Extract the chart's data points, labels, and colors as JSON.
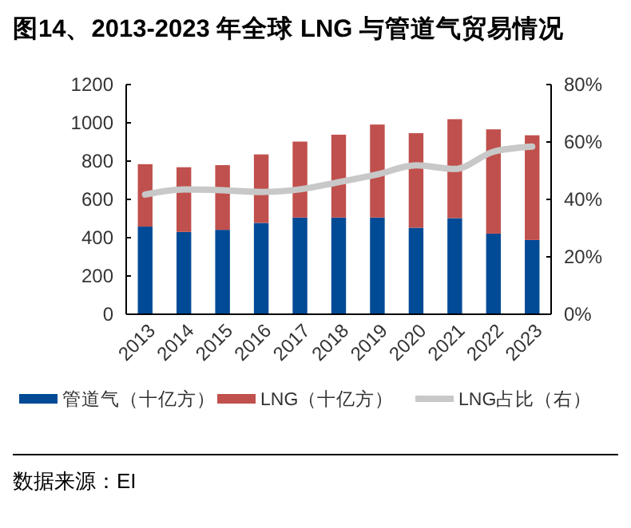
{
  "chart_data": {
    "type": "bar",
    "title": "图14、2013-2023 年全球 LNG 与管道气贸易情况",
    "categories": [
      "2013",
      "2014",
      "2015",
      "2016",
      "2017",
      "2018",
      "2019",
      "2020",
      "2021",
      "2022",
      "2023"
    ],
    "stacked": true,
    "series": [
      {
        "name": "管道气（十亿方）",
        "color": "#004a96",
        "values": [
          458,
          430,
          441,
          477,
          505,
          505,
          505,
          452,
          502,
          421,
          388
        ]
      },
      {
        "name": "LNG（十亿方）",
        "color": "#c0504d",
        "values": [
          326,
          338,
          338,
          358,
          397,
          433,
          486,
          494,
          517,
          545,
          547
        ]
      },
      {
        "name": "LNG占比（右）",
        "type": "line",
        "axis": "y2",
        "color": "#c8c8c8",
        "values": [
          41.7,
          43.5,
          43.2,
          42.6,
          43.5,
          46,
          48.7,
          51.9,
          50.6,
          56.6,
          58.4
        ]
      }
    ],
    "ylim": [
      0,
      1200
    ],
    "yticks": [
      0,
      200,
      400,
      600,
      800,
      1000,
      1200
    ],
    "y2lim": [
      0,
      80
    ],
    "y2ticks": [
      {
        "value": 0,
        "label": "0%"
      },
      {
        "value": 20,
        "label": "20%"
      },
      {
        "value": 40,
        "label": "40%"
      },
      {
        "value": 60,
        "label": "60%"
      },
      {
        "value": 80,
        "label": "80%"
      }
    ],
    "legend": "bottom",
    "grid": false,
    "annotations": [
      "数据来源：EI"
    ]
  }
}
